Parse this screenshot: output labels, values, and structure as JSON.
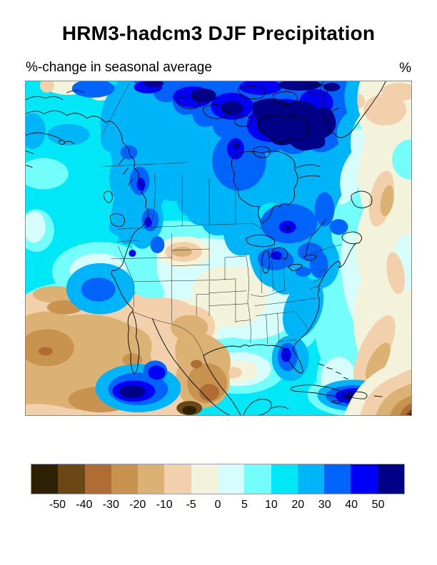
{
  "header": {
    "title": "HRM3-hadcm3 DJF Precipitation",
    "subtitle": "%-change in seasonal average",
    "units_label": "%"
  },
  "map": {
    "region_depicted": "North America",
    "kind": "filled contour map of %-change in seasonal precipitation"
  },
  "colorbar": {
    "tick_labels": [
      "-50",
      "-40",
      "-30",
      "-20",
      "-10",
      "-5",
      "0",
      "5",
      "10",
      "20",
      "30",
      "40",
      "50"
    ],
    "segment_colors": [
      "#2e2002",
      "#6b4716",
      "#b06d33",
      "#c8924f",
      "#dbb274",
      "#f2d0ab",
      "#f3f2db",
      "#d6fdfb",
      "#73fdfb",
      "#00e7f8",
      "#00b4f8",
      "#0064fa",
      "#0000f8",
      "#000086"
    ]
  }
}
